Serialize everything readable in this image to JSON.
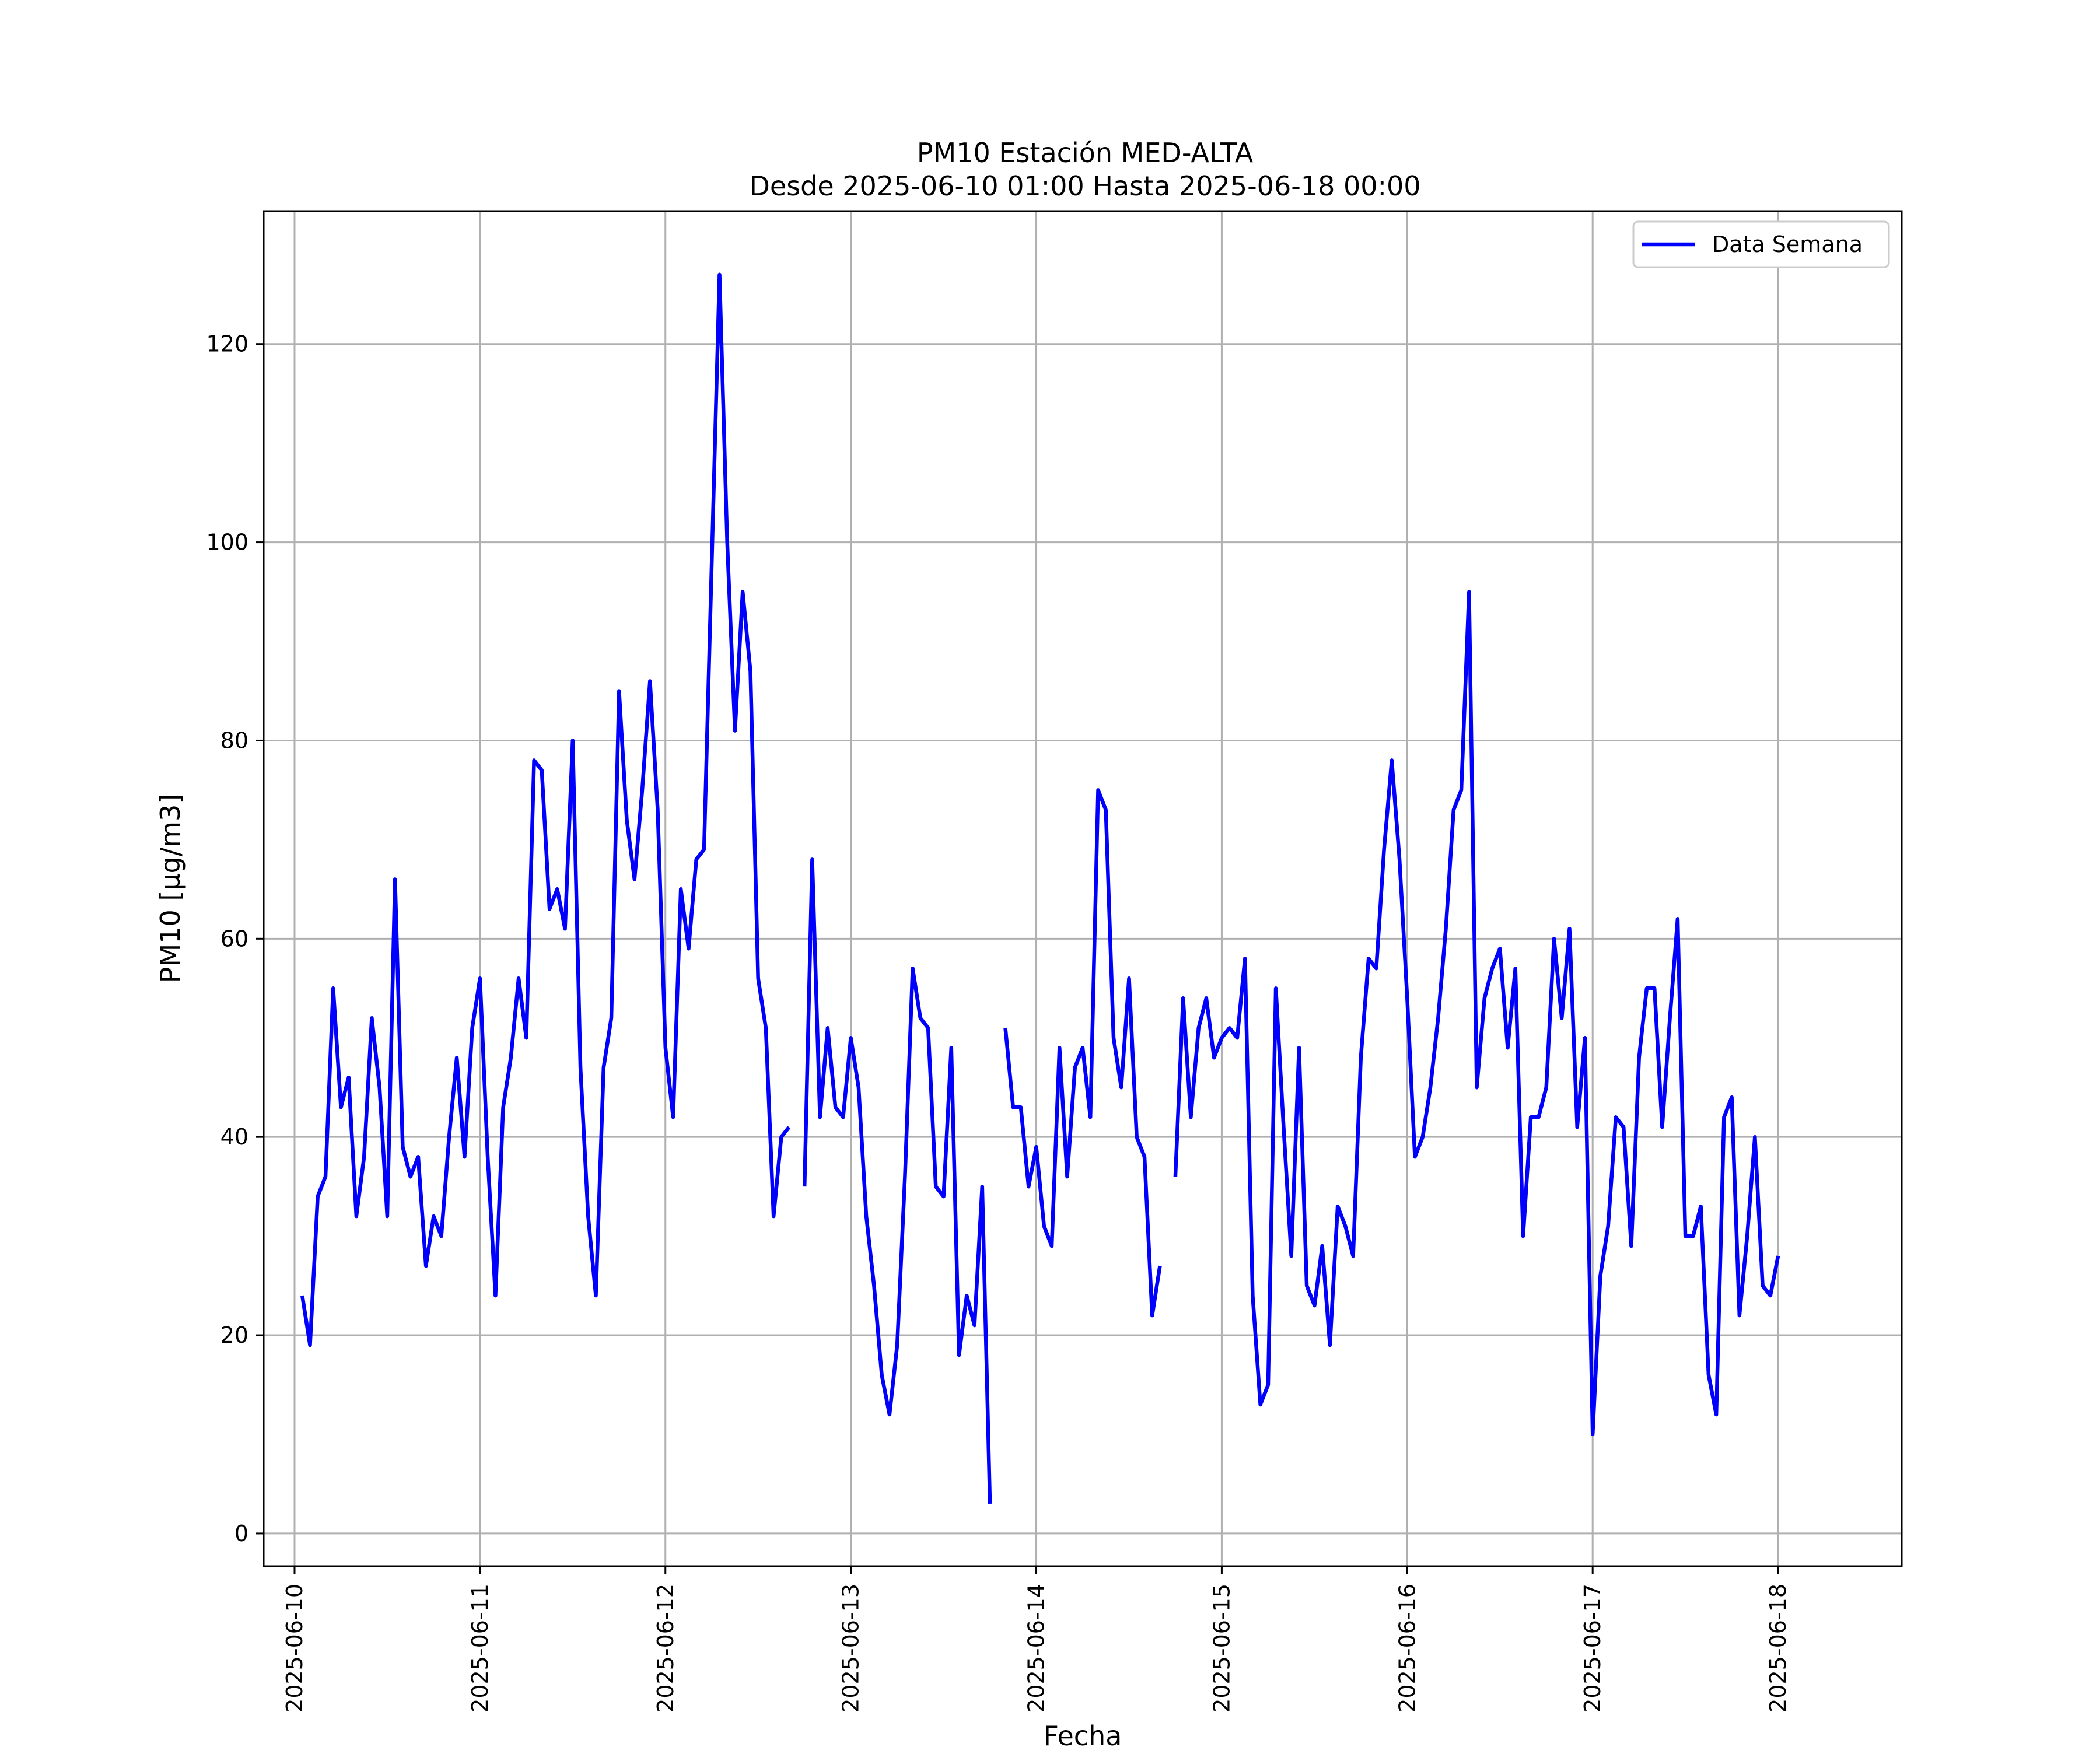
{
  "chart_data": {
    "type": "line",
    "title": "PM10 Estación MED-ALTA",
    "subtitle": "Desde 2025-06-10 01:00 Hasta 2025-06-18 00:00",
    "xlabel": "Fecha",
    "ylabel": "PM10 [μg/m3]",
    "grid": true,
    "legend_position": "top-right",
    "x_range": [
      "2025-06-09 20:00",
      "2025-06-18 16:00"
    ],
    "ylim": [
      -3.3,
      133.4
    ],
    "x_ticks": [
      "2025-06-10",
      "2025-06-11",
      "2025-06-12",
      "2025-06-13",
      "2025-06-14",
      "2025-06-15",
      "2025-06-16",
      "2025-06-17",
      "2025-06-18"
    ],
    "y_ticks": [
      "0",
      "20",
      "40",
      "60",
      "80",
      "100",
      "120"
    ],
    "series": [
      {
        "name": "Data Semana",
        "color": "#0000ff",
        "points": [
          [
            "2025-06-10 01:00",
            24
          ],
          [
            "2025-06-10 02:00",
            19
          ],
          [
            "2025-06-10 03:00",
            34
          ],
          [
            "2025-06-10 04:00",
            36
          ],
          [
            "2025-06-10 05:00",
            55
          ],
          [
            "2025-06-10 06:00",
            43
          ],
          [
            "2025-06-10 07:00",
            46
          ],
          [
            "2025-06-10 08:00",
            32
          ],
          [
            "2025-06-10 09:00",
            38
          ],
          [
            "2025-06-10 10:00",
            52
          ],
          [
            "2025-06-10 11:00",
            45
          ],
          [
            "2025-06-10 12:00",
            32
          ],
          [
            "2025-06-10 13:00",
            66
          ],
          [
            "2025-06-10 14:00",
            39
          ],
          [
            "2025-06-10 15:00",
            36
          ],
          [
            "2025-06-10 16:00",
            38
          ],
          [
            "2025-06-10 17:00",
            27
          ],
          [
            "2025-06-10 18:00",
            32
          ],
          [
            "2025-06-10 19:00",
            30
          ],
          [
            "2025-06-10 20:00",
            40
          ],
          [
            "2025-06-10 21:00",
            48
          ],
          [
            "2025-06-10 22:00",
            38
          ],
          [
            "2025-06-10 23:00",
            51
          ],
          [
            "2025-06-11 00:00",
            56
          ],
          [
            "2025-06-11 01:00",
            38
          ],
          [
            "2025-06-11 02:00",
            24
          ],
          [
            "2025-06-11 03:00",
            43
          ],
          [
            "2025-06-11 04:00",
            48
          ],
          [
            "2025-06-11 05:00",
            56
          ],
          [
            "2025-06-11 06:00",
            50
          ],
          [
            "2025-06-11 07:00",
            78
          ],
          [
            "2025-06-11 08:00",
            77
          ],
          [
            "2025-06-11 09:00",
            63
          ],
          [
            "2025-06-11 10:00",
            65
          ],
          [
            "2025-06-11 11:00",
            61
          ],
          [
            "2025-06-11 12:00",
            80
          ],
          [
            "2025-06-11 13:00",
            47
          ],
          [
            "2025-06-11 14:00",
            32
          ],
          [
            "2025-06-11 15:00",
            24
          ],
          [
            "2025-06-11 16:00",
            47
          ],
          [
            "2025-06-11 17:00",
            52
          ],
          [
            "2025-06-11 18:00",
            85
          ],
          [
            "2025-06-11 19:00",
            72
          ],
          [
            "2025-06-11 20:00",
            66
          ],
          [
            "2025-06-11 21:00",
            75
          ],
          [
            "2025-06-11 22:00",
            86
          ],
          [
            "2025-06-11 23:00",
            73
          ],
          [
            "2025-06-12 00:00",
            49
          ],
          [
            "2025-06-12 01:00",
            42
          ],
          [
            "2025-06-12 02:00",
            65
          ],
          [
            "2025-06-12 03:00",
            59
          ],
          [
            "2025-06-12 04:00",
            68
          ],
          [
            "2025-06-12 05:00",
            69
          ],
          [
            "2025-06-12 06:00",
            98
          ],
          [
            "2025-06-12 07:00",
            127
          ],
          [
            "2025-06-12 08:00",
            100
          ],
          [
            "2025-06-12 09:00",
            81
          ],
          [
            "2025-06-12 10:00",
            95
          ],
          [
            "2025-06-12 11:00",
            87
          ],
          [
            "2025-06-12 12:00",
            56
          ],
          [
            "2025-06-12 13:00",
            51
          ],
          [
            "2025-06-12 14:00",
            32
          ],
          [
            "2025-06-12 15:00",
            40
          ],
          [
            "2025-06-12 16:00",
            41
          ],
          [
            "2025-06-12 17:00",
            null
          ],
          [
            "2025-06-12 18:00",
            35
          ],
          [
            "2025-06-12 19:00",
            68
          ],
          [
            "2025-06-12 20:00",
            42
          ],
          [
            "2025-06-12 21:00",
            51
          ],
          [
            "2025-06-12 22:00",
            43
          ],
          [
            "2025-06-12 23:00",
            42
          ],
          [
            "2025-06-13 00:00",
            50
          ],
          [
            "2025-06-13 01:00",
            45
          ],
          [
            "2025-06-13 02:00",
            32
          ],
          [
            "2025-06-13 03:00",
            25
          ],
          [
            "2025-06-13 04:00",
            16
          ],
          [
            "2025-06-13 05:00",
            12
          ],
          [
            "2025-06-13 06:00",
            19
          ],
          [
            "2025-06-13 07:00",
            36
          ],
          [
            "2025-06-13 08:00",
            57
          ],
          [
            "2025-06-13 09:00",
            52
          ],
          [
            "2025-06-13 10:00",
            51
          ],
          [
            "2025-06-13 11:00",
            35
          ],
          [
            "2025-06-13 12:00",
            34
          ],
          [
            "2025-06-13 13:00",
            49
          ],
          [
            "2025-06-13 14:00",
            18
          ],
          [
            "2025-06-13 15:00",
            24
          ],
          [
            "2025-06-13 16:00",
            21
          ],
          [
            "2025-06-13 17:00",
            35
          ],
          [
            "2025-06-13 18:00",
            3
          ],
          [
            "2025-06-13 19:00",
            null
          ],
          [
            "2025-06-13 20:00",
            51
          ],
          [
            "2025-06-13 21:00",
            43
          ],
          [
            "2025-06-13 22:00",
            43
          ],
          [
            "2025-06-13 23:00",
            35
          ],
          [
            "2025-06-14 00:00",
            39
          ],
          [
            "2025-06-14 01:00",
            31
          ],
          [
            "2025-06-14 02:00",
            29
          ],
          [
            "2025-06-14 03:00",
            49
          ],
          [
            "2025-06-14 04:00",
            36
          ],
          [
            "2025-06-14 05:00",
            47
          ],
          [
            "2025-06-14 06:00",
            49
          ],
          [
            "2025-06-14 07:00",
            42
          ],
          [
            "2025-06-14 08:00",
            75
          ],
          [
            "2025-06-14 09:00",
            73
          ],
          [
            "2025-06-14 10:00",
            50
          ],
          [
            "2025-06-14 11:00",
            45
          ],
          [
            "2025-06-14 12:00",
            56
          ],
          [
            "2025-06-14 13:00",
            40
          ],
          [
            "2025-06-14 14:00",
            38
          ],
          [
            "2025-06-14 15:00",
            22
          ],
          [
            "2025-06-14 16:00",
            27
          ],
          [
            "2025-06-14 17:00",
            null
          ],
          [
            "2025-06-14 18:00",
            36
          ],
          [
            "2025-06-14 19:00",
            54
          ],
          [
            "2025-06-14 20:00",
            42
          ],
          [
            "2025-06-14 21:00",
            51
          ],
          [
            "2025-06-14 22:00",
            54
          ],
          [
            "2025-06-14 23:00",
            48
          ],
          [
            "2025-06-15 00:00",
            50
          ],
          [
            "2025-06-15 01:00",
            51
          ],
          [
            "2025-06-15 02:00",
            50
          ],
          [
            "2025-06-15 03:00",
            58
          ],
          [
            "2025-06-15 04:00",
            24
          ],
          [
            "2025-06-15 05:00",
            13
          ],
          [
            "2025-06-15 06:00",
            15
          ],
          [
            "2025-06-15 07:00",
            55
          ],
          [
            "2025-06-15 08:00",
            41
          ],
          [
            "2025-06-15 09:00",
            28
          ],
          [
            "2025-06-15 10:00",
            49
          ],
          [
            "2025-06-15 11:00",
            25
          ],
          [
            "2025-06-15 12:00",
            23
          ],
          [
            "2025-06-15 13:00",
            29
          ],
          [
            "2025-06-15 14:00",
            19
          ],
          [
            "2025-06-15 15:00",
            33
          ],
          [
            "2025-06-15 16:00",
            31
          ],
          [
            "2025-06-15 17:00",
            28
          ],
          [
            "2025-06-15 18:00",
            48
          ],
          [
            "2025-06-15 19:00",
            58
          ],
          [
            "2025-06-15 20:00",
            57
          ],
          [
            "2025-06-15 21:00",
            69
          ],
          [
            "2025-06-15 22:00",
            78
          ],
          [
            "2025-06-15 23:00",
            68
          ],
          [
            "2025-06-16 00:00",
            54
          ],
          [
            "2025-06-16 01:00",
            38
          ],
          [
            "2025-06-16 02:00",
            40
          ],
          [
            "2025-06-16 03:00",
            45
          ],
          [
            "2025-06-16 04:00",
            52
          ],
          [
            "2025-06-16 05:00",
            61
          ],
          [
            "2025-06-16 06:00",
            73
          ],
          [
            "2025-06-16 07:00",
            75
          ],
          [
            "2025-06-16 08:00",
            95
          ],
          [
            "2025-06-16 09:00",
            45
          ],
          [
            "2025-06-16 10:00",
            54
          ],
          [
            "2025-06-16 11:00",
            57
          ],
          [
            "2025-06-16 12:00",
            59
          ],
          [
            "2025-06-16 13:00",
            49
          ],
          [
            "2025-06-16 14:00",
            57
          ],
          [
            "2025-06-16 15:00",
            30
          ],
          [
            "2025-06-16 16:00",
            42
          ],
          [
            "2025-06-16 17:00",
            42
          ],
          [
            "2025-06-16 18:00",
            45
          ],
          [
            "2025-06-16 19:00",
            60
          ],
          [
            "2025-06-16 20:00",
            52
          ],
          [
            "2025-06-16 21:00",
            61
          ],
          [
            "2025-06-16 22:00",
            41
          ],
          [
            "2025-06-16 23:00",
            50
          ],
          [
            "2025-06-17 00:00",
            10
          ],
          [
            "2025-06-17 01:00",
            26
          ],
          [
            "2025-06-17 02:00",
            31
          ],
          [
            "2025-06-17 03:00",
            42
          ],
          [
            "2025-06-17 04:00",
            41
          ],
          [
            "2025-06-17 05:00",
            29
          ],
          [
            "2025-06-17 06:00",
            48
          ],
          [
            "2025-06-17 07:00",
            55
          ],
          [
            "2025-06-17 08:00",
            55
          ],
          [
            "2025-06-17 09:00",
            41
          ],
          [
            "2025-06-17 10:00",
            52
          ],
          [
            "2025-06-17 11:00",
            62
          ],
          [
            "2025-06-17 12:00",
            30
          ],
          [
            "2025-06-17 13:00",
            30
          ],
          [
            "2025-06-17 14:00",
            33
          ],
          [
            "2025-06-17 15:00",
            16
          ],
          [
            "2025-06-17 16:00",
            12
          ],
          [
            "2025-06-17 17:00",
            42
          ],
          [
            "2025-06-17 18:00",
            44
          ],
          [
            "2025-06-17 19:00",
            22
          ],
          [
            "2025-06-17 20:00",
            30
          ],
          [
            "2025-06-17 21:00",
            40
          ],
          [
            "2025-06-17 22:00",
            25
          ],
          [
            "2025-06-17 23:00",
            24
          ],
          [
            "2025-06-18 00:00",
            28
          ]
        ]
      }
    ]
  }
}
